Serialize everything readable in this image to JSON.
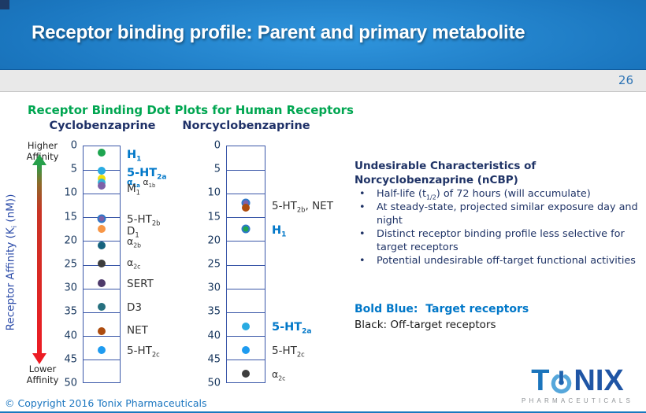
{
  "slide": {
    "title": "Receptor binding profile: Parent and primary metabolite",
    "page_number": "26",
    "copyright": "© Copyright 2016 Tonix Pharmaceuticals"
  },
  "section_heading": "Receptor Binding Dot Plots for Human Receptors",
  "axis": {
    "label": "Receptor Affinity (K_{i} (nM))",
    "higher_label": "Higher Affinity",
    "lower_label": "Lower Affinity"
  },
  "colors": {
    "header_blue": "#1b77c0",
    "heading_green": "#00a651",
    "navy_text": "#1f3366",
    "target_blue": "#0077c8",
    "ring_blue": "#2e78c8"
  },
  "notes": {
    "heading": "Undesirable Characteristics of Norcyclobenzaprine (nCBP)",
    "bullets": [
      "Half-life (t_{1/2}) of 72 hours (will accumulate)",
      "At steady-state, projected similar exposure day and night",
      "Distinct receptor binding profile less selective for target receptors",
      "Potential undesirable off-target functional activities"
    ]
  },
  "legend": {
    "target_label": "Bold Blue:  Target receptors",
    "offtarget_label": "Black: Off-target receptors"
  },
  "logo": {
    "prefix": "T",
    "suffix": "NIX",
    "tagline": "PHARMACEUTICALS"
  },
  "chart_data": [
    {
      "type": "scatter",
      "title": "Cyclobenzaprine",
      "ylabel": "Receptor Affinity (Ki (nM))",
      "ylim": [
        0,
        50
      ],
      "ytick_interval": 5,
      "grid": true,
      "points": [
        {
          "receptor": "H_{1}",
          "ki": 1.5,
          "color": "#1ea550",
          "target": true
        },
        {
          "receptor": "5-HT_{2a}",
          "ki": 5.3,
          "color": "#29abe2",
          "target": true
        },
        {
          "receptor": "α_{1a}",
          "ki": 6.9,
          "color": "#f0e10c",
          "target": true
        },
        {
          "receptor": "α_{1b}",
          "ki": 7.7,
          "color": "#35b4d8",
          "target": false
        },
        {
          "receptor": "M_{1}",
          "ki": 8.5,
          "color": "#7d60a8",
          "target": false
        },
        {
          "receptor": "5-HT_{2b}",
          "ki": 15.4,
          "color": "#7d60a8",
          "ring": "#2e78c8",
          "target": false
        },
        {
          "receptor": "D_{1}",
          "ki": 17.6,
          "color": "#f79646",
          "target": false
        },
        {
          "receptor": "α_{2b}",
          "ki": 21.0,
          "color": "#15627e",
          "target": false
        },
        {
          "receptor": "α_{2c}",
          "ki": 24.8,
          "color": "#3d3d3d",
          "target": false
        },
        {
          "receptor": "SERT",
          "ki": 29.0,
          "color": "#4e3a6b",
          "target": false
        },
        {
          "receptor": "D3",
          "ki": 34.0,
          "color": "#26707f",
          "target": false
        },
        {
          "receptor": "NET",
          "ki": 39.0,
          "color": "#ad4c0e",
          "target": false
        },
        {
          "receptor": "5-HT_{2c}",
          "ki": 43.0,
          "color": "#1e9bf0",
          "target": false
        }
      ],
      "labels": [
        {
          "ki": 1.8,
          "parts": [
            {
              "t": "H_{1}",
              "cls": "target-lg"
            }
          ]
        },
        {
          "ki": 5.6,
          "parts": [
            {
              "t": "5-HT_{2a}",
              "cls": "target-lg"
            }
          ]
        },
        {
          "ki": 7.4,
          "parts": [
            {
              "t": "α_{1a}",
              "cls": "target-sm"
            },
            {
              "t": " α_{1b}",
              "cls": "off-xs"
            }
          ]
        },
        {
          "ki": 8.9,
          "parts": [
            {
              "t": "M_{1}",
              "cls": "off"
            }
          ]
        },
        {
          "ki": 15.4,
          "parts": [
            {
              "t": "5-HT_{2b}",
              "cls": "off"
            }
          ]
        },
        {
          "ki": 17.8,
          "parts": [
            {
              "t": "D_{1}",
              "cls": "off"
            }
          ]
        },
        {
          "ki": 20.1,
          "parts": [
            {
              "t": "α_{2b}",
              "cls": "off-sm"
            }
          ]
        },
        {
          "ki": 24.5,
          "parts": [
            {
              "t": "α_{2c}",
              "cls": "off-sm"
            }
          ]
        },
        {
          "ki": 29.0,
          "parts": [
            {
              "t": "SERT",
              "cls": "off"
            }
          ]
        },
        {
          "ki": 34.0,
          "parts": [
            {
              "t": "D3",
              "cls": "off"
            }
          ]
        },
        {
          "ki": 38.7,
          "parts": [
            {
              "t": "NET",
              "cls": "off"
            }
          ]
        },
        {
          "ki": 43.0,
          "parts": [
            {
              "t": "5-HT_{2c}",
              "cls": "off"
            }
          ]
        }
      ]
    },
    {
      "type": "scatter",
      "title": "Norcyclobenzaprine",
      "ylabel": "Receptor Affinity (Ki (nM))",
      "ylim": [
        0,
        50
      ],
      "ytick_interval": 5,
      "grid": true,
      "points": [
        {
          "receptor": "5-HT_{2b}",
          "ki": 12.1,
          "color": "#7d60a8",
          "ring": "#2e78c8",
          "target": false
        },
        {
          "receptor": "NET",
          "ki": 13.1,
          "color": "#ad4c0e",
          "target": false
        },
        {
          "receptor": "H_{1}",
          "ki": 17.6,
          "color": "#1ea550",
          "ring": "#2e78c8",
          "target": true
        },
        {
          "receptor": "5-HT_{2a}",
          "ki": 38.0,
          "color": "#29abe2",
          "target": true
        },
        {
          "receptor": "5-HT_{2c}",
          "ki": 43.0,
          "color": "#1e9bf0",
          "target": false
        },
        {
          "receptor": "α_{2c}",
          "ki": 48.0,
          "color": "#3d3d3d",
          "target": false
        }
      ],
      "labels": [
        {
          "ki": 12.6,
          "parts": [
            {
              "t": "5-HT_{2b}, NET",
              "cls": "off"
            }
          ]
        },
        {
          "ki": 17.7,
          "parts": [
            {
              "t": "H_{1}",
              "cls": "target-lg"
            }
          ]
        },
        {
          "ki": 38.0,
          "parts": [
            {
              "t": "5-HT_{2a}",
              "cls": "target-lg"
            }
          ]
        },
        {
          "ki": 43.0,
          "parts": [
            {
              "t": "5-HT_{2c}",
              "cls": "off"
            }
          ]
        },
        {
          "ki": 48.0,
          "parts": [
            {
              "t": "α_{2c}",
              "cls": "off-sm"
            }
          ]
        }
      ]
    }
  ]
}
